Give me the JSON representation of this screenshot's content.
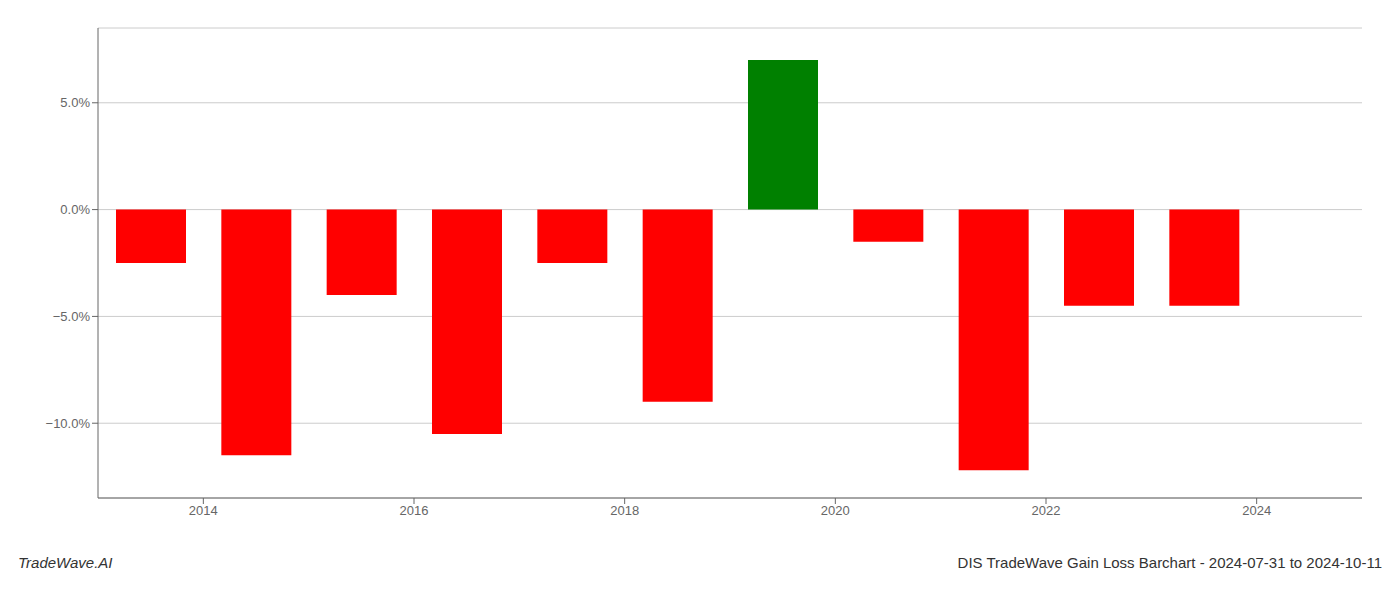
{
  "chart_data": {
    "type": "bar",
    "title": "DIS TradeWave Gain Loss Barchart - 2024-07-31 to 2024-10-11",
    "annotations": [
      "TradeWave.AI"
    ],
    "x": [
      2013.5,
      2014.5,
      2015.5,
      2016.5,
      2017.5,
      2018.5,
      2019.5,
      2020.5,
      2021.5,
      2022.5,
      2023.5
    ],
    "values": [
      -2.5,
      -11.5,
      -4.0,
      -10.5,
      -2.5,
      -9.0,
      7.0,
      -1.5,
      -12.2,
      -4.5,
      -4.5
    ],
    "colors": [
      "#ff0000",
      "#ff0000",
      "#ff0000",
      "#ff0000",
      "#ff0000",
      "#ff0000",
      "#008000",
      "#ff0000",
      "#ff0000",
      "#ff0000",
      "#ff0000"
    ],
    "xlim": [
      2013.0,
      2025.0
    ],
    "xticks": [
      2014,
      2016,
      2018,
      2020,
      2022,
      2024
    ],
    "ylim": [
      -13.5,
      8.5
    ],
    "yticks": [
      {
        "value": -10.0,
        "label": "−10.0%"
      },
      {
        "value": -5.0,
        "label": "−5.0%"
      },
      {
        "value": 0.0,
        "label": "0.0%"
      },
      {
        "value": 5.0,
        "label": "5.0%"
      }
    ],
    "grid": true
  }
}
